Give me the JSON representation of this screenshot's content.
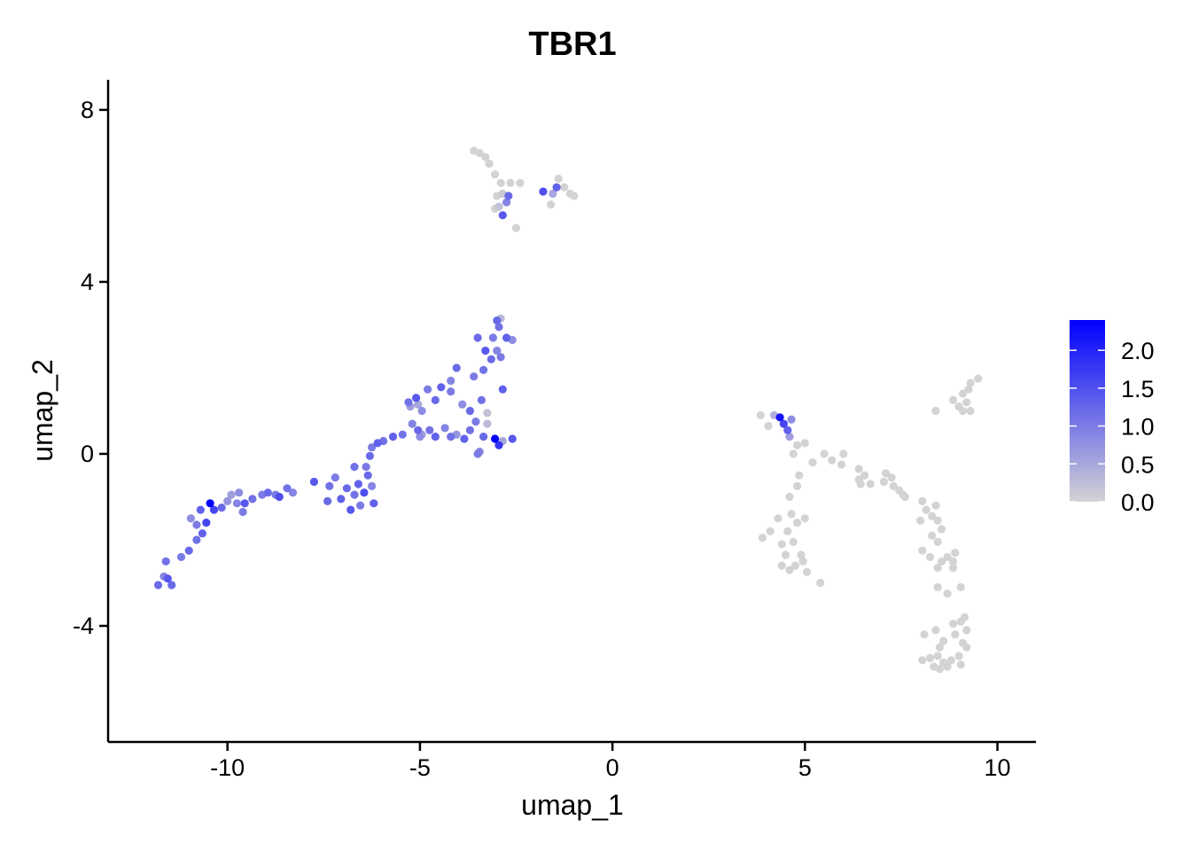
{
  "chart_data": {
    "type": "scatter",
    "title": "TBR1",
    "xlabel": "umap_1",
    "ylabel": "umap_2",
    "xlim": [
      -13.1,
      11.0
    ],
    "ylim": [
      -6.7,
      8.7
    ],
    "x_ticks": [
      -10,
      -5,
      0,
      5,
      10
    ],
    "x_tick_labels": [
      "-10",
      "-5",
      "0",
      "5",
      "10"
    ],
    "y_ticks": [
      -4,
      0,
      4,
      8
    ],
    "y_tick_labels": [
      "-4",
      "0",
      "4",
      "8"
    ],
    "grid": false,
    "legend": {
      "placement": "right",
      "min": 0.0,
      "max": 2.4,
      "ticks": [
        0.0,
        0.5,
        1.0,
        1.5,
        2.0
      ],
      "tick_labels": [
        "0.0",
        "0.5",
        "1.0",
        "1.5",
        "2.0"
      ],
      "low_color": "#d3d3d3",
      "high_color": "#0000ff"
    },
    "points": [
      {
        "x": -11.8,
        "y": -3.05,
        "v": 1.2
      },
      {
        "x": -11.45,
        "y": -3.05,
        "v": 1.2
      },
      {
        "x": -11.65,
        "y": -2.85,
        "v": 0.9
      },
      {
        "x": -11.55,
        "y": -2.9,
        "v": 1.4
      },
      {
        "x": -11.6,
        "y": -2.5,
        "v": 1.1
      },
      {
        "x": -11.2,
        "y": -2.4,
        "v": 1.0
      },
      {
        "x": -11.0,
        "y": -2.25,
        "v": 1.2
      },
      {
        "x": -10.8,
        "y": -2.0,
        "v": 1.1
      },
      {
        "x": -10.65,
        "y": -1.85,
        "v": 1.3
      },
      {
        "x": -10.55,
        "y": -1.6,
        "v": 1.6
      },
      {
        "x": -10.8,
        "y": -1.65,
        "v": 1.0
      },
      {
        "x": -10.95,
        "y": -1.5,
        "v": 0.8
      },
      {
        "x": -10.7,
        "y": -1.3,
        "v": 1.3
      },
      {
        "x": -10.45,
        "y": -1.15,
        "v": 2.4
      },
      {
        "x": -10.35,
        "y": -1.3,
        "v": 1.6
      },
      {
        "x": -10.15,
        "y": -1.25,
        "v": 1.2
      },
      {
        "x": -10.0,
        "y": -1.1,
        "v": 0.7
      },
      {
        "x": -9.9,
        "y": -0.95,
        "v": 0.6
      },
      {
        "x": -9.75,
        "y": -1.15,
        "v": 0.9
      },
      {
        "x": -9.6,
        "y": -1.35,
        "v": 1.0
      },
      {
        "x": -9.55,
        "y": -1.15,
        "v": 1.4
      },
      {
        "x": -9.35,
        "y": -1.05,
        "v": 1.1
      },
      {
        "x": -9.7,
        "y": -0.9,
        "v": 0.8
      },
      {
        "x": -9.1,
        "y": -0.95,
        "v": 1.0
      },
      {
        "x": -8.95,
        "y": -0.9,
        "v": 1.2
      },
      {
        "x": -8.75,
        "y": -0.95,
        "v": 1.0
      },
      {
        "x": -8.65,
        "y": -1.0,
        "v": 1.5
      },
      {
        "x": -8.45,
        "y": -0.8,
        "v": 1.1
      },
      {
        "x": -8.3,
        "y": -0.9,
        "v": 0.9
      },
      {
        "x": -7.75,
        "y": -0.65,
        "v": 1.4
      },
      {
        "x": -7.4,
        "y": -1.1,
        "v": 1.2
      },
      {
        "x": -7.35,
        "y": -0.75,
        "v": 1.1
      },
      {
        "x": -7.2,
        "y": -0.55,
        "v": 1.0
      },
      {
        "x": -7.05,
        "y": -1.05,
        "v": 1.3
      },
      {
        "x": -6.9,
        "y": -0.8,
        "v": 1.2
      },
      {
        "x": -6.8,
        "y": -1.3,
        "v": 1.4
      },
      {
        "x": -6.7,
        "y": -0.95,
        "v": 1.1
      },
      {
        "x": -6.6,
        "y": -0.7,
        "v": 1.3
      },
      {
        "x": -6.55,
        "y": -1.2,
        "v": 1.0
      },
      {
        "x": -6.45,
        "y": -0.9,
        "v": 1.5
      },
      {
        "x": -6.35,
        "y": -0.5,
        "v": 1.2
      },
      {
        "x": -6.25,
        "y": -0.75,
        "v": 0.9
      },
      {
        "x": -6.2,
        "y": -1.15,
        "v": 1.3
      },
      {
        "x": -6.7,
        "y": -0.3,
        "v": 1.1
      },
      {
        "x": -6.4,
        "y": -0.3,
        "v": 1.0
      },
      {
        "x": -6.3,
        "y": -0.05,
        "v": 1.2
      },
      {
        "x": -6.1,
        "y": 0.25,
        "v": 1.3
      },
      {
        "x": -5.95,
        "y": 0.3,
        "v": 1.1
      },
      {
        "x": -6.25,
        "y": 0.15,
        "v": 1.0
      },
      {
        "x": -5.7,
        "y": 0.4,
        "v": 1.3
      },
      {
        "x": -5.45,
        "y": 0.45,
        "v": 1.1
      },
      {
        "x": -5.2,
        "y": 0.7,
        "v": 0.9
      },
      {
        "x": -5.05,
        "y": 0.55,
        "v": 1.2
      },
      {
        "x": -4.95,
        "y": 0.45,
        "v": 0.6
      },
      {
        "x": -5.0,
        "y": 0.4,
        "v": 0.8
      },
      {
        "x": -4.75,
        "y": 0.55,
        "v": 1.1
      },
      {
        "x": -4.6,
        "y": 0.4,
        "v": 1.3
      },
      {
        "x": -5.3,
        "y": 1.2,
        "v": 1.1
      },
      {
        "x": -5.1,
        "y": 1.3,
        "v": 1.4
      },
      {
        "x": -4.95,
        "y": 1.0,
        "v": 0.8
      },
      {
        "x": -4.8,
        "y": 1.5,
        "v": 1.0
      },
      {
        "x": -4.6,
        "y": 1.25,
        "v": 1.2
      },
      {
        "x": -4.45,
        "y": 1.55,
        "v": 1.3
      },
      {
        "x": -4.2,
        "y": 1.7,
        "v": 0.9
      },
      {
        "x": -4.05,
        "y": 2.0,
        "v": 1.2
      },
      {
        "x": -5.25,
        "y": 1.1,
        "v": 0.6
      },
      {
        "x": -5.05,
        "y": 1.15,
        "v": 0.5
      },
      {
        "x": -4.2,
        "y": 1.45,
        "v": 1.0
      },
      {
        "x": -3.85,
        "y": 0.35,
        "v": 1.3
      },
      {
        "x": -3.7,
        "y": 0.55,
        "v": 1.1
      },
      {
        "x": -3.55,
        "y": 0.75,
        "v": 1.0
      },
      {
        "x": -3.45,
        "y": 0.05,
        "v": 0.9
      },
      {
        "x": -3.35,
        "y": 0.4,
        "v": 1.2
      },
      {
        "x": -3.25,
        "y": 0.7,
        "v": 0.3
      },
      {
        "x": -3.05,
        "y": 0.35,
        "v": 2.4
      },
      {
        "x": -2.95,
        "y": 0.2,
        "v": 1.8
      },
      {
        "x": -2.85,
        "y": 0.3,
        "v": 0.5
      },
      {
        "x": -2.6,
        "y": 0.35,
        "v": 1.4
      },
      {
        "x": -3.9,
        "y": 1.15,
        "v": 0.8
      },
      {
        "x": -3.7,
        "y": 1.0,
        "v": 1.2
      },
      {
        "x": -3.4,
        "y": 1.25,
        "v": 1.1
      },
      {
        "x": -3.25,
        "y": 0.95,
        "v": 0.2
      },
      {
        "x": -2.85,
        "y": 1.5,
        "v": 1.3
      },
      {
        "x": -3.6,
        "y": 1.8,
        "v": 1.0
      },
      {
        "x": -3.35,
        "y": 1.95,
        "v": 1.1
      },
      {
        "x": -3.15,
        "y": 2.2,
        "v": 1.2
      },
      {
        "x": -3.0,
        "y": 2.4,
        "v": 0.9
      },
      {
        "x": -2.9,
        "y": 2.25,
        "v": 1.0
      },
      {
        "x": -2.75,
        "y": 2.7,
        "v": 1.3
      },
      {
        "x": -2.6,
        "y": 2.65,
        "v": 0.8
      },
      {
        "x": -2.95,
        "y": 2.95,
        "v": 1.1
      },
      {
        "x": -3.1,
        "y": 2.7,
        "v": 1.0
      },
      {
        "x": -2.9,
        "y": 3.15,
        "v": 0.3
      },
      {
        "x": -3.5,
        "y": 2.7,
        "v": 1.2
      },
      {
        "x": -3.3,
        "y": 2.4,
        "v": 1.4
      },
      {
        "x": -3.0,
        "y": 3.1,
        "v": 1.2
      },
      {
        "x": -4.2,
        "y": 0.4,
        "v": 1.1
      },
      {
        "x": -4.35,
        "y": 0.6,
        "v": 0.9
      },
      {
        "x": -4.05,
        "y": 0.45,
        "v": 0.7
      },
      {
        "x": -3.5,
        "y": 0.0,
        "v": 1.0
      },
      {
        "x": -3.45,
        "y": 7.0,
        "v": 0.0
      },
      {
        "x": -3.3,
        "y": 6.9,
        "v": 0.0
      },
      {
        "x": -3.2,
        "y": 6.75,
        "v": 0.0
      },
      {
        "x": -3.05,
        "y": 6.5,
        "v": 0.0
      },
      {
        "x": -2.9,
        "y": 6.3,
        "v": 0.0
      },
      {
        "x": -2.65,
        "y": 6.3,
        "v": 0.0
      },
      {
        "x": -2.4,
        "y": 6.3,
        "v": 0.0
      },
      {
        "x": -3.0,
        "y": 6.0,
        "v": 0.0
      },
      {
        "x": -2.85,
        "y": 6.05,
        "v": 0.1
      },
      {
        "x": -2.7,
        "y": 6.0,
        "v": 1.2
      },
      {
        "x": -2.75,
        "y": 5.85,
        "v": 0.9
      },
      {
        "x": -3.05,
        "y": 5.7,
        "v": 0.0
      },
      {
        "x": -2.85,
        "y": 5.55,
        "v": 1.4
      },
      {
        "x": -2.5,
        "y": 5.25,
        "v": 0.0
      },
      {
        "x": -2.95,
        "y": 5.75,
        "v": 0.2
      },
      {
        "x": -1.8,
        "y": 6.1,
        "v": 1.5
      },
      {
        "x": -1.55,
        "y": 6.05,
        "v": 0.5
      },
      {
        "x": -1.45,
        "y": 6.2,
        "v": 1.3
      },
      {
        "x": -1.4,
        "y": 6.4,
        "v": 0.0
      },
      {
        "x": -1.25,
        "y": 6.2,
        "v": 0.0
      },
      {
        "x": -1.1,
        "y": 6.05,
        "v": 0.0
      },
      {
        "x": -1.0,
        "y": 6.0,
        "v": 0.0
      },
      {
        "x": -1.6,
        "y": 5.8,
        "v": 0.0
      },
      {
        "x": -3.6,
        "y": 7.05,
        "v": 0.0
      },
      {
        "x": 3.85,
        "y": 0.9,
        "v": 0.0
      },
      {
        "x": 4.05,
        "y": 0.65,
        "v": 0.0
      },
      {
        "x": 4.35,
        "y": 0.85,
        "v": 2.2
      },
      {
        "x": 4.45,
        "y": 0.7,
        "v": 1.6
      },
      {
        "x": 4.55,
        "y": 0.55,
        "v": 1.3
      },
      {
        "x": 4.65,
        "y": 0.8,
        "v": 0.8
      },
      {
        "x": 4.2,
        "y": 0.9,
        "v": 0.4
      },
      {
        "x": 4.6,
        "y": 0.4,
        "v": 0.6
      },
      {
        "x": 4.8,
        "y": 0.2,
        "v": 0.0
      },
      {
        "x": 5.0,
        "y": 0.25,
        "v": 0.0
      },
      {
        "x": 4.7,
        "y": 0.0,
        "v": 0.0
      },
      {
        "x": 5.2,
        "y": -0.2,
        "v": 0.0
      },
      {
        "x": 5.5,
        "y": 0.0,
        "v": 0.0
      },
      {
        "x": 5.7,
        "y": -0.15,
        "v": 0.0
      },
      {
        "x": 6.0,
        "y": 0.0,
        "v": 0.0
      },
      {
        "x": 5.95,
        "y": -0.25,
        "v": 0.0
      },
      {
        "x": 4.85,
        "y": -0.5,
        "v": 0.0
      },
      {
        "x": 4.8,
        "y": -0.75,
        "v": 0.0
      },
      {
        "x": 4.6,
        "y": -1.0,
        "v": 0.0
      },
      {
        "x": 4.65,
        "y": -1.4,
        "v": 0.0
      },
      {
        "x": 4.8,
        "y": -1.6,
        "v": 0.0
      },
      {
        "x": 5.0,
        "y": -1.5,
        "v": 0.0
      },
      {
        "x": 4.55,
        "y": -1.8,
        "v": 0.0
      },
      {
        "x": 4.3,
        "y": -1.5,
        "v": 0.0
      },
      {
        "x": 4.1,
        "y": -1.8,
        "v": 0.0
      },
      {
        "x": 3.9,
        "y": -1.95,
        "v": 0.0
      },
      {
        "x": 4.4,
        "y": -2.1,
        "v": 0.0
      },
      {
        "x": 4.7,
        "y": -2.05,
        "v": 0.0
      },
      {
        "x": 4.5,
        "y": -2.35,
        "v": 0.0
      },
      {
        "x": 4.9,
        "y": -2.35,
        "v": 0.0
      },
      {
        "x": 4.4,
        "y": -2.6,
        "v": 0.0
      },
      {
        "x": 4.75,
        "y": -2.6,
        "v": 0.0
      },
      {
        "x": 4.95,
        "y": -2.5,
        "v": 0.0
      },
      {
        "x": 4.6,
        "y": -2.7,
        "v": 0.0
      },
      {
        "x": 5.05,
        "y": -2.75,
        "v": 0.0
      },
      {
        "x": 5.4,
        "y": -3.0,
        "v": 0.0
      },
      {
        "x": 6.4,
        "y": -0.35,
        "v": 0.0
      },
      {
        "x": 6.55,
        "y": -0.5,
        "v": 0.0
      },
      {
        "x": 6.4,
        "y": -0.6,
        "v": 0.0
      },
      {
        "x": 6.7,
        "y": -0.7,
        "v": 0.0
      },
      {
        "x": 6.45,
        "y": -0.7,
        "v": 0.0
      },
      {
        "x": 7.1,
        "y": -0.45,
        "v": 0.0
      },
      {
        "x": 7.25,
        "y": -0.55,
        "v": 0.0
      },
      {
        "x": 7.05,
        "y": -0.65,
        "v": 0.0
      },
      {
        "x": 7.3,
        "y": -0.75,
        "v": 0.0
      },
      {
        "x": 7.45,
        "y": -0.85,
        "v": 0.0
      },
      {
        "x": 7.55,
        "y": -0.95,
        "v": 0.0
      },
      {
        "x": 7.6,
        "y": -1.0,
        "v": 0.0
      },
      {
        "x": 8.05,
        "y": -1.1,
        "v": 0.0
      },
      {
        "x": 8.15,
        "y": -1.3,
        "v": 0.0
      },
      {
        "x": 8.4,
        "y": -1.2,
        "v": 0.0
      },
      {
        "x": 8.3,
        "y": -1.45,
        "v": 0.0
      },
      {
        "x": 8.0,
        "y": -1.55,
        "v": 0.0
      },
      {
        "x": 8.45,
        "y": -1.55,
        "v": 0.0
      },
      {
        "x": 8.55,
        "y": -1.75,
        "v": 0.0
      },
      {
        "x": 8.3,
        "y": -1.9,
        "v": 0.0
      },
      {
        "x": 8.45,
        "y": -2.05,
        "v": 0.0
      },
      {
        "x": 8.05,
        "y": -2.25,
        "v": 0.0
      },
      {
        "x": 8.25,
        "y": -2.4,
        "v": 0.0
      },
      {
        "x": 8.7,
        "y": -2.4,
        "v": 0.0
      },
      {
        "x": 8.9,
        "y": -2.3,
        "v": 0.0
      },
      {
        "x": 8.85,
        "y": -2.5,
        "v": 0.0
      },
      {
        "x": 8.55,
        "y": -2.5,
        "v": 0.0
      },
      {
        "x": 8.45,
        "y": -2.65,
        "v": 0.0
      },
      {
        "x": 8.85,
        "y": -2.65,
        "v": 0.0
      },
      {
        "x": 8.45,
        "y": -3.1,
        "v": 0.0
      },
      {
        "x": 9.05,
        "y": -3.1,
        "v": 0.0
      },
      {
        "x": 8.7,
        "y": -3.25,
        "v": 0.0
      },
      {
        "x": 9.15,
        "y": -3.8,
        "v": 0.0
      },
      {
        "x": 9.05,
        "y": -3.9,
        "v": 0.0
      },
      {
        "x": 8.85,
        "y": -3.95,
        "v": 0.0
      },
      {
        "x": 8.9,
        "y": -4.2,
        "v": 0.0
      },
      {
        "x": 9.2,
        "y": -4.1,
        "v": 0.0
      },
      {
        "x": 9.1,
        "y": -4.4,
        "v": 0.0
      },
      {
        "x": 9.2,
        "y": -4.5,
        "v": 0.0
      },
      {
        "x": 8.6,
        "y": -4.35,
        "v": 0.0
      },
      {
        "x": 8.4,
        "y": -4.1,
        "v": 0.0
      },
      {
        "x": 8.5,
        "y": -4.5,
        "v": 0.0
      },
      {
        "x": 8.45,
        "y": -4.7,
        "v": 0.0
      },
      {
        "x": 8.25,
        "y": -4.75,
        "v": 0.0
      },
      {
        "x": 8.05,
        "y": -4.8,
        "v": 0.0
      },
      {
        "x": 8.6,
        "y": -4.85,
        "v": 0.0
      },
      {
        "x": 8.8,
        "y": -4.8,
        "v": 0.0
      },
      {
        "x": 9.0,
        "y": -4.7,
        "v": 0.0
      },
      {
        "x": 9.05,
        "y": -4.9,
        "v": 0.0
      },
      {
        "x": 8.7,
        "y": -4.95,
        "v": 0.0
      },
      {
        "x": 8.5,
        "y": -5.0,
        "v": 0.0
      },
      {
        "x": 8.35,
        "y": -4.95,
        "v": 0.0
      },
      {
        "x": 8.1,
        "y": -4.2,
        "v": 0.0
      },
      {
        "x": 8.4,
        "y": 1.0,
        "v": 0.0
      },
      {
        "x": 8.85,
        "y": 1.25,
        "v": 0.0
      },
      {
        "x": 9.0,
        "y": 1.1,
        "v": 0.0
      },
      {
        "x": 9.1,
        "y": 1.0,
        "v": 0.0
      },
      {
        "x": 9.2,
        "y": 1.2,
        "v": 0.0
      },
      {
        "x": 9.1,
        "y": 1.4,
        "v": 0.0
      },
      {
        "x": 9.25,
        "y": 1.5,
        "v": 0.0
      },
      {
        "x": 9.3,
        "y": 1.65,
        "v": 0.0
      },
      {
        "x": 9.5,
        "y": 1.75,
        "v": 0.0
      },
      {
        "x": 9.3,
        "y": 1.0,
        "v": 0.0
      }
    ]
  }
}
